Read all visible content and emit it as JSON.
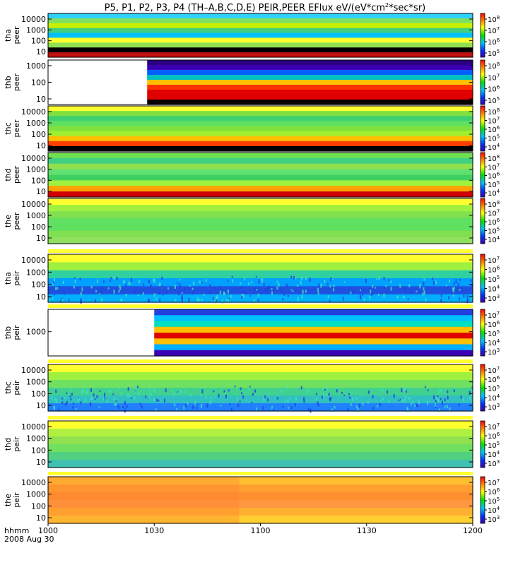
{
  "title": "P5, P1, P2, P3, P4 (TH–A,B,C,D,E) PEIR,PEER EFlux eV/(eV*cm",
  "title_sup": "2",
  "title_tail": "*sec*sr)",
  "chart_data": {
    "type": "heatmap",
    "x_axis": {
      "label_line1": "hhmm",
      "label_line2": "2008 Aug 30",
      "ticks": [
        "1000",
        "1030",
        "1100",
        "1130",
        "1200"
      ],
      "range": [
        "10:00",
        "12:00"
      ]
    },
    "colors": {
      "low": "#3c00b4",
      "mid": "#00e000",
      "high": "#ff0000"
    },
    "panels": [
      {
        "id": "tha-peer",
        "label1": "tha",
        "label2": "peer",
        "yticks": [
          "10000",
          "1000",
          "100",
          "10"
        ],
        "cbar_ticks": [
          {
            "b": "10",
            "e": "8"
          },
          {
            "b": "10",
            "e": "7"
          },
          {
            "b": "10",
            "e": "6"
          },
          {
            "b": "10",
            "e": "5"
          }
        ],
        "style": "bands",
        "data_start": "10:00",
        "bands": [
          "#2ed0ff",
          "#7fe060",
          "#c8f000",
          "#40d080",
          "#00c0ff",
          "#ffff30",
          "#90e050",
          "#000000",
          "#c01010"
        ]
      },
      {
        "id": "thb-peer",
        "label1": "thb",
        "label2": "peer",
        "yticks": [
          "1000",
          "100",
          "10"
        ],
        "cbar_ticks": [
          {
            "b": "10",
            "e": "8"
          },
          {
            "b": "10",
            "e": "7"
          },
          {
            "b": "10",
            "e": "6"
          },
          {
            "b": "10",
            "e": "5"
          }
        ],
        "style": "bands",
        "data_start": "10:28",
        "bands": [
          "#2a0080",
          "#3c00b4",
          "#0060ff",
          "#00c0c0",
          "#ffc000",
          "#ff3000",
          "#e00000",
          "#e00000",
          "#000000"
        ]
      },
      {
        "id": "thc-peer",
        "label1": "thc",
        "label2": "peer",
        "yticks": [
          "10000",
          "1000",
          "100",
          "10"
        ],
        "cbar_ticks": [
          {
            "b": "10",
            "e": "8"
          },
          {
            "b": "10",
            "e": "7"
          },
          {
            "b": "10",
            "e": "6"
          },
          {
            "b": "10",
            "e": "5"
          },
          {
            "b": "10",
            "e": "4"
          }
        ],
        "style": "bands",
        "data_start": "10:00",
        "bands": [
          "#ffff30",
          "#80e040",
          "#40d070",
          "#60e060",
          "#80e040",
          "#a0f030",
          "#ffc000",
          "#ff4000",
          "#000000"
        ]
      },
      {
        "id": "thd-peer",
        "label1": "thd",
        "label2": "peer",
        "yticks": [
          "10000",
          "1000",
          "100",
          "10"
        ],
        "cbar_ticks": [
          {
            "b": "10",
            "e": "8"
          },
          {
            "b": "10",
            "e": "7"
          },
          {
            "b": "10",
            "e": "6"
          },
          {
            "b": "10",
            "e": "5"
          },
          {
            "b": "10",
            "e": "4"
          }
        ],
        "style": "bands",
        "data_start": "10:00",
        "bands": [
          "#70e050",
          "#40d080",
          "#90e050",
          "#60e070",
          "#40d060",
          "#a0f040",
          "#ffa000",
          "#d00000"
        ]
      },
      {
        "id": "the-peer",
        "label1": "the",
        "label2": "peer",
        "yticks": [
          "10000",
          "1000",
          "100",
          "10"
        ],
        "cbar_ticks": [
          {
            "b": "10",
            "e": "8"
          },
          {
            "b": "10",
            "e": "7"
          },
          {
            "b": "10",
            "e": "6"
          },
          {
            "b": "10",
            "e": "5"
          },
          {
            "b": "10",
            "e": "4"
          }
        ],
        "style": "bands",
        "data_start": "10:00",
        "bands": [
          "#ffff30",
          "#a0f040",
          "#80e050",
          "#60e060",
          "#60e060",
          "#80e050",
          "#90e060"
        ]
      },
      {
        "id": "tha-peir",
        "label1": "tha",
        "label2": "peir",
        "yticks": [
          "10000",
          "1000",
          "100",
          "10"
        ],
        "cbar_ticks": [
          {
            "b": "10",
            "e": "7"
          },
          {
            "b": "10",
            "e": "6"
          },
          {
            "b": "10",
            "e": "5"
          },
          {
            "b": "10",
            "e": "4"
          },
          {
            "b": "10",
            "e": "3"
          }
        ],
        "style": "noisy",
        "data_start": "10:00",
        "bands": [
          "#ffff30",
          "#a0f040",
          "#30d0a0",
          "#00a0ff",
          "#2050e0",
          "#00b0ff"
        ]
      },
      {
        "id": "thb-peir",
        "label1": "thb",
        "label2": "peir",
        "yticks": [
          "1000"
        ],
        "cbar_ticks": [
          {
            "b": "10",
            "e": "7"
          },
          {
            "b": "10",
            "e": "6"
          },
          {
            "b": "10",
            "e": "5"
          },
          {
            "b": "10",
            "e": "4"
          },
          {
            "b": "10",
            "e": "3"
          }
        ],
        "style": "bands",
        "data_start": "10:30",
        "bands": [
          "#2040e0",
          "#00c0ff",
          "#00e0c0",
          "#ffc000",
          "#e00000",
          "#ffc000",
          "#00b0ff",
          "#3c00b4"
        ]
      },
      {
        "id": "thc-peir",
        "label1": "thc",
        "label2": "peir",
        "yticks": [
          "10000",
          "1000",
          "100",
          "10"
        ],
        "cbar_ticks": [
          {
            "b": "10",
            "e": "7"
          },
          {
            "b": "10",
            "e": "6"
          },
          {
            "b": "10",
            "e": "5"
          },
          {
            "b": "10",
            "e": "4"
          },
          {
            "b": "10",
            "e": "3"
          }
        ],
        "style": "noisy",
        "data_start": "10:00",
        "bands": [
          "#ffff30",
          "#a0f040",
          "#70e060",
          "#40d090",
          "#30c0c0",
          "#2080ff"
        ]
      },
      {
        "id": "thd-peir",
        "label1": "thd",
        "label2": "peir",
        "yticks": [
          "10000",
          "1000",
          "100",
          "10"
        ],
        "cbar_ticks": [
          {
            "b": "10",
            "e": "7"
          },
          {
            "b": "10",
            "e": "6"
          },
          {
            "b": "10",
            "e": "5"
          },
          {
            "b": "10",
            "e": "4"
          },
          {
            "b": "10",
            "e": "3"
          }
        ],
        "style": "bands",
        "data_start": "10:00",
        "bands": [
          "#ffff30",
          "#b0f040",
          "#90e050",
          "#70e060",
          "#50d080",
          "#40c0b0"
        ]
      },
      {
        "id": "the-peir",
        "label1": "the",
        "label2": "peir",
        "yticks": [
          "10000",
          "1000",
          "100",
          "10"
        ],
        "cbar_ticks": [
          {
            "b": "10",
            "e": "7"
          },
          {
            "b": "10",
            "e": "6"
          },
          {
            "b": "10",
            "e": "5"
          },
          {
            "b": "10",
            "e": "4"
          },
          {
            "b": "10",
            "e": "3"
          }
        ],
        "style": "warm",
        "data_start": "10:00",
        "bands": [
          "#ffc030",
          "#ffa030",
          "#ff9030",
          "#ff9840",
          "#ffb030",
          "#ffd030"
        ]
      }
    ]
  }
}
